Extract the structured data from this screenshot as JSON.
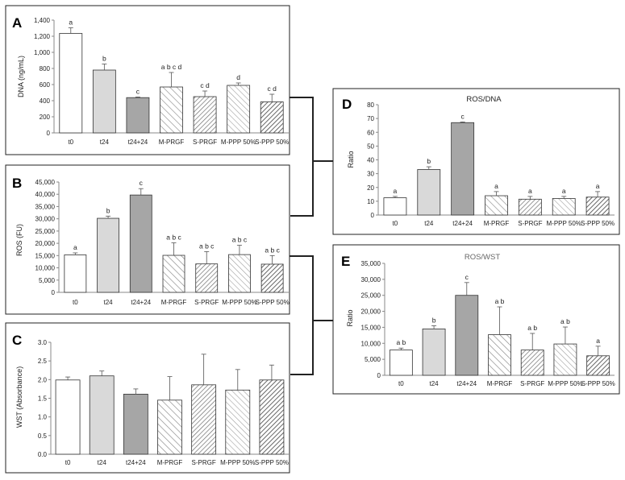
{
  "patterns": {
    "t0": "white-solid",
    "t24": "light-gray-solid",
    "t24+24": "gray-solid",
    "M-PRGF": "sparse-diagonal-hatch",
    "S-PRGF": "dense-diagonal-hatch",
    "M-PPP 50%": "light-diagonal-hatch",
    "S-PPP 50%": "heavy-diagonal-hatch"
  },
  "colors": {
    "t0": "#ffffff",
    "t24": "#d9d9d9",
    "t24+24": "#a6a6a6",
    "frame": "#222222",
    "hatch": "#7a7a7a"
  },
  "chart_data": [
    {
      "id": "A",
      "panel_label": "A",
      "type": "bar",
      "title": "",
      "categories": [
        "t0",
        "t24",
        "t24+24",
        "M-PRGF",
        "S-PRGF",
        "M-PPP 50%",
        "S-PPP 50%"
      ],
      "values": [
        1235,
        780,
        438,
        570,
        450,
        590,
        385
      ],
      "errors": [
        70,
        75,
        8,
        180,
        70,
        30,
        95
      ],
      "labels": [
        "a",
        "b",
        "c",
        "a b c d",
        "c d",
        "d",
        "c d"
      ],
      "ylabel": "DNA (ng/mL)",
      "ylim": [
        0,
        1400
      ],
      "yticks": [
        "0",
        "200",
        "400",
        "600",
        "800",
        "1,000",
        "1,200",
        "1,400"
      ]
    },
    {
      "id": "B",
      "panel_label": "B",
      "type": "bar",
      "title": "",
      "categories": [
        "t0",
        "t24",
        "t24+24",
        "M-PRGF",
        "S-PRGF",
        "M-PPP 50%",
        "S-PPP 50%"
      ],
      "values": [
        15300,
        30200,
        39700,
        15100,
        11600,
        15400,
        11500
      ],
      "errors": [
        800,
        900,
        2600,
        5100,
        5000,
        3800,
        3500
      ],
      "labels": [
        "a",
        "b",
        "c",
        "a b c",
        "a b c",
        "a b c",
        "a b c"
      ],
      "ylabel": "ROS (FU)",
      "ylim": [
        0,
        45000
      ],
      "yticks": [
        "0",
        "5,000",
        "10,000",
        "15,000",
        "20,000",
        "25,000",
        "30,000",
        "35,000",
        "40,000",
        "45,000"
      ]
    },
    {
      "id": "C",
      "panel_label": "C",
      "type": "bar",
      "title": "",
      "categories": [
        "t0",
        "t24",
        "t24+24",
        "M-PRGF",
        "S-PRGF",
        "M-PPP 50%",
        "S-PPP 50%"
      ],
      "values": [
        1.99,
        2.1,
        1.61,
        1.45,
        1.86,
        1.72,
        1.99
      ],
      "errors": [
        0.08,
        0.13,
        0.14,
        0.63,
        0.82,
        0.55,
        0.4
      ],
      "labels": [
        "",
        "",
        "",
        "",
        "",
        "",
        ""
      ],
      "ylabel": "WST (Absorbance)",
      "ylim": [
        0,
        3.0
      ],
      "yticks": [
        "0.0",
        "0.5",
        "1.0",
        "1.5",
        "2.0",
        "2.5",
        "3.0"
      ]
    },
    {
      "id": "D",
      "panel_label": "D",
      "type": "bar",
      "title": "ROS/DNA",
      "categories": [
        "t0",
        "t24",
        "t24+24",
        "M-PRGF",
        "S-PRGF",
        "M-PPP 50%",
        "S-PPP 50%"
      ],
      "values": [
        12.5,
        33,
        67,
        14,
        11.5,
        12,
        13
      ],
      "errors": [
        1,
        2,
        0.5,
        3,
        2,
        1.5,
        4
      ],
      "labels": [
        "a",
        "b",
        "c",
        "a",
        "a",
        "a",
        "a"
      ],
      "ylabel": "Ratio",
      "ylim": [
        0,
        80
      ],
      "yticks": [
        "0",
        "10",
        "20",
        "30",
        "40",
        "50",
        "60",
        "70",
        "80"
      ]
    },
    {
      "id": "E",
      "panel_label": "E",
      "type": "bar",
      "title": "ROS/WST",
      "categories": [
        "t0",
        "t24",
        "t24+24",
        "M-PRGF",
        "S-PRGF",
        "M-PPP 50%",
        "S-PPP 50%"
      ],
      "values": [
        7900,
        14500,
        25000,
        12700,
        7900,
        9800,
        6100
      ],
      "errors": [
        600,
        1000,
        4000,
        8700,
        5200,
        5300,
        3000
      ],
      "labels": [
        "a b",
        "b",
        "c",
        "a b",
        "a b",
        "a b",
        "a"
      ],
      "ylabel": "Ratio",
      "ylim": [
        0,
        35000
      ],
      "yticks": [
        "0",
        "5,000",
        "10,000",
        "15,000",
        "20,000",
        "25,000",
        "30,000",
        "35,000"
      ]
    }
  ]
}
